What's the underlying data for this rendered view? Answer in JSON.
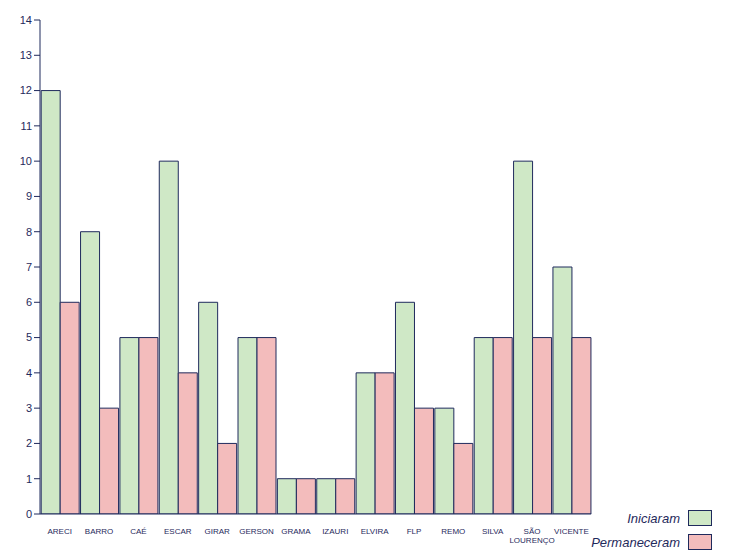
{
  "chart_data": {
    "type": "bar",
    "categories": [
      "ARECI",
      "BARRO",
      "CAÉ",
      "ESCAR",
      "GIRAR",
      "GERSON",
      "GRAMA",
      "IZAURI",
      "ELVIRA",
      "FLP",
      "REMO",
      "SILVA",
      "SÃO LOURENÇO",
      "VICENTE"
    ],
    "series": [
      {
        "name": "Iniciaram",
        "color": "#cfe8c6",
        "values": [
          12,
          8,
          5,
          10,
          6,
          5,
          1,
          1,
          4,
          6,
          3,
          5,
          10,
          7
        ]
      },
      {
        "name": "Permaneceram",
        "color": "#f3bcbc",
        "values": [
          6,
          3,
          5,
          4,
          2,
          5,
          1,
          1,
          4,
          3,
          2,
          5,
          5,
          5
        ]
      }
    ],
    "ylim": [
      0,
      14
    ],
    "yticks": [
      0,
      1,
      2,
      3,
      4,
      5,
      6,
      7,
      8,
      9,
      10,
      11,
      12,
      13,
      14
    ],
    "grid": false,
    "legend": "bottom right"
  }
}
